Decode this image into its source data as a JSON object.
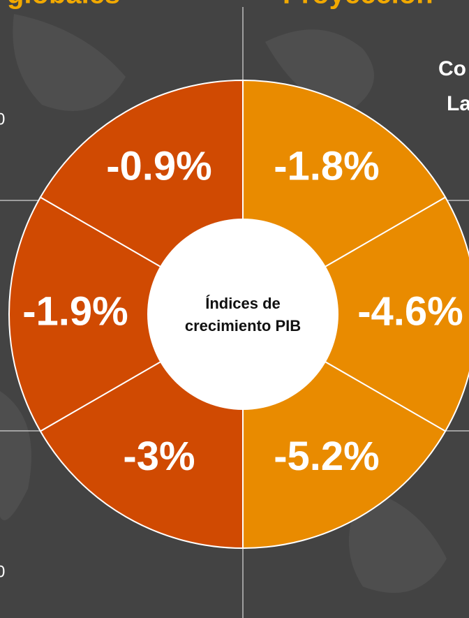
{
  "header": {
    "left_title": "globales",
    "right_title": "Proyeccion"
  },
  "side_texts": {
    "right_top": "Co",
    "right_bottom": "La",
    "left_top": "0",
    "left_bottom": "0"
  },
  "donut": {
    "center_label": [
      "Índices de",
      "crecimiento PIB"
    ],
    "segments": [
      {
        "label": "-1.8%",
        "color": "#e98b00"
      },
      {
        "label": "-4.6%",
        "color": "#e98b00"
      },
      {
        "label": "-5.2%",
        "color": "#e98b00"
      },
      {
        "label": "-3%",
        "color": "#d04a02"
      },
      {
        "label": "-1.9%",
        "color": "#d04a02"
      },
      {
        "label": "-0.9%",
        "color": "#d04a02"
      }
    ]
  }
}
